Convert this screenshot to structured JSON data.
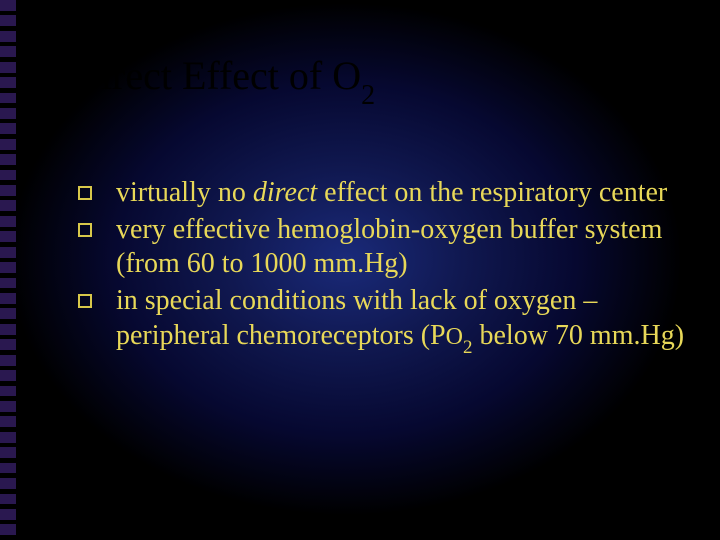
{
  "slide": {
    "background": {
      "gradient_center_color": "#1a2a7a",
      "gradient_mid_color": "#101850",
      "gradient_outer_color": "#000000"
    },
    "left_bar": {
      "tick_color": "#2a1850",
      "tick_count": 35
    },
    "title": {
      "text_main": "Direct Effect of O",
      "text_sub": "2",
      "color": "#000000",
      "fontsize": 40
    },
    "bullets": {
      "bullet_border_color": "#d8c84a",
      "text_color": "#e8d858",
      "fontsize": 28,
      "items": [
        {
          "pre": "virtually no ",
          "em": "direct",
          "post": " effect on the respiratory center"
        },
        {
          "pre": "very effective hemoglobin-oxygen buffer system (from 60 to 1000 mm.Hg)",
          "em": "",
          "post": ""
        },
        {
          "pre": "in special conditions with lack of oxygen – peripheral chemoreceptors (P",
          "sc": "O",
          "sub": "2",
          "post": " below 70 mm.Hg)"
        }
      ]
    }
  }
}
